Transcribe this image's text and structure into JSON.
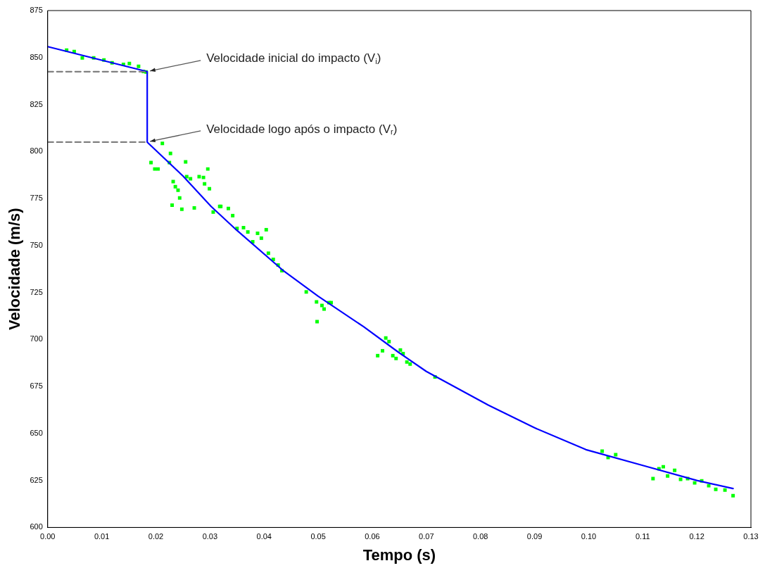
{
  "chart_data": {
    "type": "line",
    "xlabel": "Tempo (s)",
    "ylabel": "Velocidade (m/s)",
    "xlim": [
      0,
      0.13
    ],
    "ylim": [
      600,
      875
    ],
    "xticks": [
      {
        "value": 0,
        "label": "0.00"
      },
      {
        "value": 0.01,
        "label": "0.01"
      },
      {
        "value": 0.02,
        "label": "0.02"
      },
      {
        "value": 0.03,
        "label": "0.03"
      },
      {
        "value": 0.04,
        "label": "0.04"
      },
      {
        "value": 0.05,
        "label": "0.05"
      },
      {
        "value": 0.06,
        "label": "0.06"
      },
      {
        "value": 0.07,
        "label": "0.07"
      },
      {
        "value": 0.08,
        "label": "0.08"
      },
      {
        "value": 0.09,
        "label": "0.09"
      },
      {
        "value": 0.1,
        "label": "0.10"
      },
      {
        "value": 0.11,
        "label": "0.11"
      },
      {
        "value": 0.12,
        "label": "0.12"
      },
      {
        "value": 0.13,
        "label": "0.13"
      }
    ],
    "yticks": [
      600,
      625,
      650,
      675,
      700,
      725,
      750,
      775,
      800,
      825,
      850,
      875
    ],
    "grid": false,
    "legend": false,
    "series": [
      {
        "type": "scatter",
        "marker": "square",
        "color": "#00ff00",
        "x": [
          0.0035,
          0.0049,
          0.0064,
          0.0085,
          0.0104,
          0.0119,
          0.014,
          0.0151,
          0.0168,
          0.0177,
          0.0182,
          0.0191,
          0.0198,
          0.0204,
          0.0212,
          0.0225,
          0.0227,
          0.023,
          0.0232,
          0.0236,
          0.0241,
          0.0244,
          0.0248,
          0.0255,
          0.0257,
          0.0264,
          0.0271,
          0.028,
          0.0288,
          0.029,
          0.0296,
          0.0299,
          0.0306,
          0.0318,
          0.032,
          0.0334,
          0.0342,
          0.035,
          0.0362,
          0.037,
          0.0379,
          0.0388,
          0.0395,
          0.0404,
          0.0408,
          0.0417,
          0.0426,
          0.0433,
          0.0478,
          0.0497,
          0.0498,
          0.0507,
          0.0511,
          0.052,
          0.0524,
          0.061,
          0.0619,
          0.0625,
          0.0631,
          0.0638,
          0.0644,
          0.0652,
          0.0657,
          0.0664,
          0.067,
          0.0716,
          0.1025,
          0.1036,
          0.105,
          0.1119,
          0.113,
          0.1138,
          0.1146,
          0.1159,
          0.117,
          0.1183,
          0.1196,
          0.1209,
          0.1222,
          0.1235,
          0.1252,
          0.1267
        ],
        "values": [
          853.9,
          853.2,
          849.8,
          849.8,
          848.7,
          847.2,
          846.4,
          846.8,
          845.3,
          842.6,
          842.3,
          794.1,
          790.7,
          790.7,
          804.3,
          794.1,
          799,
          771.5,
          784,
          781.3,
          779.4,
          775.3,
          769.3,
          794.5,
          786.6,
          785.5,
          770,
          786.6,
          786.2,
          782.8,
          790.7,
          780.2,
          767.8,
          770.8,
          770.8,
          769.7,
          765.9,
          759.1,
          759.5,
          757.2,
          752,
          756.5,
          753.9,
          758.4,
          745.9,
          742.6,
          739.6,
          736.6,
          725.3,
          720,
          709.5,
          718.1,
          716.2,
          719.6,
          719.6,
          691.4,
          694,
          700.8,
          698.9,
          691.4,
          689.9,
          694.4,
          692.5,
          688,
          686.9,
          680.1,
          640.6,
          637.2,
          638.7,
          626,
          631.2,
          632.3,
          627.4,
          630.4,
          625.6,
          626,
          623.7,
          624.8,
          622.2,
          620.3,
          619.9,
          616.9
        ]
      },
      {
        "marker": "none",
        "line_style": "solid",
        "color": "#0000ff",
        "x": [
          0,
          0.0184,
          0.0184,
          0.025,
          0.0302,
          0.035,
          0.0434,
          0.05,
          0.0584,
          0.0648,
          0.07,
          0.0815,
          0.09,
          0.0995,
          0.11,
          0.12,
          0.1267
        ],
        "values": [
          855.8,
          842.5,
          805,
          787,
          770.8,
          758,
          737,
          723,
          706.8,
          693.3,
          683,
          665,
          653,
          641.4,
          633,
          625,
          620.7
        ]
      },
      {
        "marker": "none",
        "line_style": "dashed",
        "color": "#808080",
        "x": [
          0,
          0.0184
        ],
        "values": [
          842.5,
          842.5
        ]
      },
      {
        "marker": "none",
        "line_style": "dashed",
        "color": "#808080",
        "x": [
          0,
          0.0184
        ],
        "values": [
          805,
          805
        ]
      }
    ],
    "annotations": [
      {
        "text": "Velocidade inicial do impacto (V$_{i}$)",
        "x": 0.0184,
        "y": 842.5
      },
      {
        "text": "Velocidade logo após o impacto (V$_{r}$)",
        "x": 0.0184,
        "y": 805
      }
    ]
  }
}
